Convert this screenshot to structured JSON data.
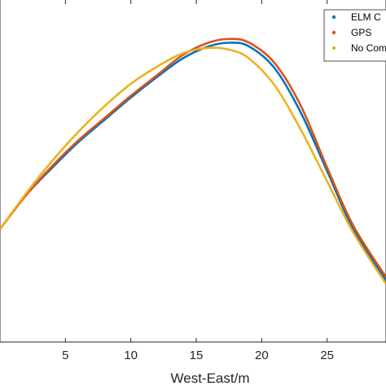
{
  "chart_data": {
    "type": "line",
    "xlabel": "West-East/m",
    "xlim": [
      0,
      29.5
    ],
    "ylim": [
      0,
      1
    ],
    "xticks": [
      5,
      10,
      15,
      20,
      25
    ],
    "legend": {
      "placement": "top-right",
      "entries": [
        "ELM C",
        "GPS",
        "No Com"
      ]
    },
    "series": [
      {
        "name": "ELM C",
        "color": "#0072BD",
        "x": [
          0,
          2,
          4,
          6,
          8,
          10,
          12,
          14,
          16,
          17.5,
          19,
          21,
          23,
          25,
          27,
          29.5
        ],
        "y": [
          0.33,
          0.43,
          0.51,
          0.585,
          0.65,
          0.715,
          0.775,
          0.83,
          0.865,
          0.875,
          0.865,
          0.8,
          0.67,
          0.5,
          0.33,
          0.18
        ]
      },
      {
        "name": "GPS",
        "color": "#D95319",
        "x": [
          0,
          2,
          4,
          6,
          8,
          10,
          12,
          14,
          16,
          17.5,
          19,
          21,
          23,
          25,
          27,
          29.5
        ],
        "y": [
          0.33,
          0.43,
          0.515,
          0.59,
          0.655,
          0.72,
          0.78,
          0.84,
          0.876,
          0.886,
          0.876,
          0.815,
          0.69,
          0.51,
          0.34,
          0.19
        ]
      },
      {
        "name": "No Com",
        "color": "#EDB120",
        "x": [
          0,
          2,
          4,
          6,
          8,
          10,
          12,
          14,
          16,
          17.5,
          19,
          21,
          23,
          25,
          27,
          29.5
        ],
        "y": [
          0.33,
          0.435,
          0.53,
          0.615,
          0.69,
          0.755,
          0.805,
          0.845,
          0.86,
          0.855,
          0.83,
          0.75,
          0.62,
          0.47,
          0.32,
          0.17
        ]
      }
    ]
  }
}
